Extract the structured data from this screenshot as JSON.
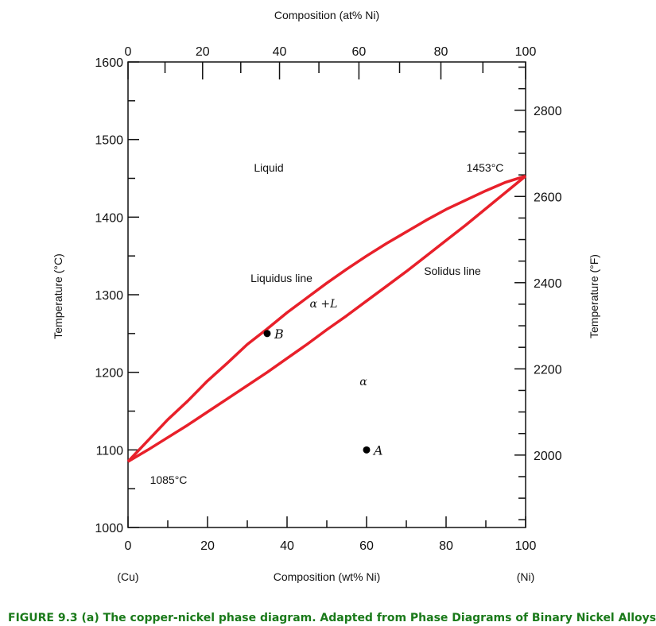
{
  "chart_data": {
    "type": "line",
    "title": "",
    "x_top_label": "Composition (at% Ni)",
    "xlabel": "Composition (wt% Ni)",
    "ylabel_left": "Temperature (°C)",
    "ylabel_right": "Temperature (°F)",
    "xlim": [
      0,
      100
    ],
    "ylim": [
      1000,
      1600
    ],
    "x_ticks": [
      "0",
      "20",
      "40",
      "60",
      "80",
      "100"
    ],
    "x_top_ticks": [
      "0",
      "20",
      "40",
      "60",
      "80",
      "100"
    ],
    "y_ticks": [
      "1000",
      "1100",
      "1200",
      "1300",
      "1400",
      "1500",
      "1600"
    ],
    "y_right_ticks": [
      "2000",
      "2200",
      "2400",
      "2600",
      "2800"
    ],
    "x_end_labels": {
      "left": "(Cu)",
      "right": "(Ni)"
    },
    "series": [
      {
        "name": "Liquidus line",
        "color": "#e8202a",
        "x": [
          0,
          5,
          10,
          15,
          20,
          25,
          30,
          35,
          40,
          45,
          50,
          55,
          60,
          65,
          70,
          75,
          80,
          85,
          90,
          95,
          100
        ],
        "y": [
          1085,
          1112,
          1139,
          1163,
          1189,
          1212,
          1236,
          1256,
          1277,
          1296,
          1315,
          1333,
          1350,
          1366,
          1381,
          1396,
          1410,
          1422,
          1434,
          1445,
          1453
        ]
      },
      {
        "name": "Solidus line",
        "color": "#e8202a",
        "x": [
          0,
          5,
          10,
          15,
          20,
          25,
          30,
          35,
          40,
          45,
          50,
          55,
          60,
          65,
          70,
          75,
          80,
          85,
          90,
          95,
          100
        ],
        "y": [
          1085,
          1100,
          1116,
          1132,
          1149,
          1166,
          1183,
          1200,
          1218,
          1236,
          1255,
          1273,
          1292,
          1311,
          1330,
          1350,
          1370,
          1390,
          1411,
          1432,
          1453
        ]
      }
    ],
    "points": [
      {
        "label": "A",
        "x": 60,
        "y": 1100
      },
      {
        "label": "B",
        "x": 35,
        "y": 1250
      }
    ],
    "annotations": {
      "liquid": "Liquid",
      "liquidus": "Liquidus line",
      "solidus": "Solidus line",
      "alpha_l": "α +L",
      "alpha": "α",
      "temp_ni": "1453°C",
      "temp_cu": "1085°C"
    },
    "grid": false,
    "legend": "none"
  },
  "caption": "FIGURE 9.3 (a) The copper-nickel phase diagram. Adapted from Phase Diagrams of Binary Nickel Alloys"
}
